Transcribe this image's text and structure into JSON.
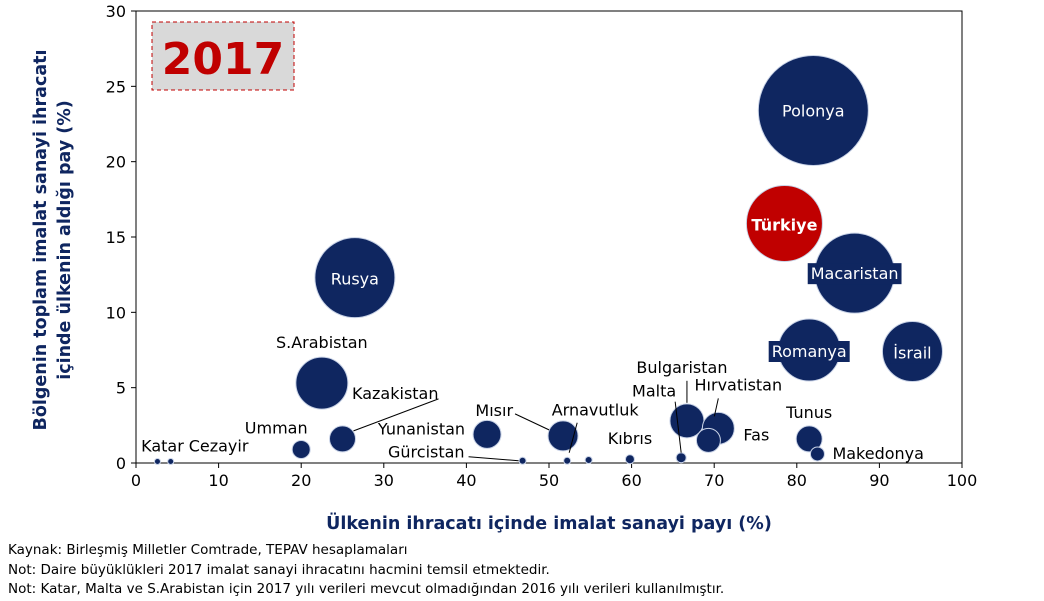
{
  "chart_data": {
    "type": "scatter",
    "title": "",
    "badge": "2017",
    "xlabel": "Ülkenin ihracatı içinde imalat sanayi payı (%)",
    "ylabel_lines": [
      "Bölgenin toplam imalat sanayi ihracatı",
      "içinde ülkenin aldığı pay (%)"
    ],
    "xlim": [
      0,
      100
    ],
    "ylim": [
      0,
      30
    ],
    "x_ticks": [
      "0",
      "10",
      "20",
      "30",
      "40",
      "50",
      "60",
      "70",
      "80",
      "90",
      "100"
    ],
    "y_ticks": [
      "0",
      "5",
      "10",
      "15",
      "20",
      "25",
      "30"
    ],
    "grid": false,
    "bubble_size_meaning": "2017 imalat sanayi ihracatı hacmi",
    "colors": {
      "navy": "#0f2660",
      "red": "#c00000",
      "axis_text": "#0f2660",
      "badge_bg": "#d9d9d9",
      "badge_text": "#c00000"
    },
    "points": [
      {
        "name": "Polonya",
        "x": 82.0,
        "y": 23.4,
        "size": 55
      },
      {
        "name": "Türkiye",
        "x": 78.5,
        "y": 15.9,
        "size": 38,
        "highlight": true
      },
      {
        "name": "Macaristan",
        "x": 87.0,
        "y": 12.6,
        "size": 40
      },
      {
        "name": "Rusya",
        "x": 26.5,
        "y": 12.3,
        "size": 40
      },
      {
        "name": "Romanya",
        "x": 81.5,
        "y": 7.5,
        "size": 31
      },
      {
        "name": "İsrail",
        "x": 94.0,
        "y": 7.4,
        "size": 30
      },
      {
        "name": "S.Arabistan",
        "x": 22.5,
        "y": 5.3,
        "size": 26
      },
      {
        "name": "Kazakistan",
        "x": 25.0,
        "y": 1.6,
        "size": 13
      },
      {
        "name": "Umman",
        "x": 20.0,
        "y": 0.9,
        "size": 9
      },
      {
        "name": "Yunanistan",
        "x": 42.5,
        "y": 1.9,
        "size": 14
      },
      {
        "name": "Mısır",
        "x": 51.7,
        "y": 1.8,
        "size": 15
      },
      {
        "name": "Arnavutluk",
        "x": 52.2,
        "y": 0.15,
        "size": 3.5
      },
      {
        "name": "Gürcistan",
        "x": 46.8,
        "y": 0.15,
        "size": 3.5
      },
      {
        "name": "Kıbrıs",
        "x": 59.8,
        "y": 0.25,
        "size": 4.5
      },
      {
        "name": "Malta",
        "x": 66.0,
        "y": 0.35,
        "size": 5
      },
      {
        "name": "Bulgaristan",
        "x": 66.7,
        "y": 2.8,
        "size": 17
      },
      {
        "name": "Hırvatistan",
        "x": 70.5,
        "y": 2.3,
        "size": 16
      },
      {
        "name": "Fas",
        "x": 69.3,
        "y": 1.5,
        "size": 12
      },
      {
        "name": "Tunus",
        "x": 81.5,
        "y": 1.6,
        "size": 13
      },
      {
        "name": "Makedonya",
        "x": 82.5,
        "y": 0.6,
        "size": 7
      },
      {
        "name": "Katar",
        "x": 2.6,
        "y": 0.1,
        "size": 3
      },
      {
        "name": "Cezayir",
        "x": 4.2,
        "y": 0.1,
        "size": 3
      },
      {
        "name": "",
        "x": 54.8,
        "y": 0.2,
        "size": 3.5
      }
    ]
  },
  "notes": [
    "Kaynak: Birleşmiş Milletler Comtrade, TEPAV hesaplamaları",
    "Not: Daire büyüklükleri 2017 imalat sanayi ihracatını hacmini temsil etmektedir.",
    "Not: Katar, Malta ve S.Arabistan için 2017 yılı verileri mevcut olmadığından 2016 yılı verileri kullanılmıştır."
  ]
}
